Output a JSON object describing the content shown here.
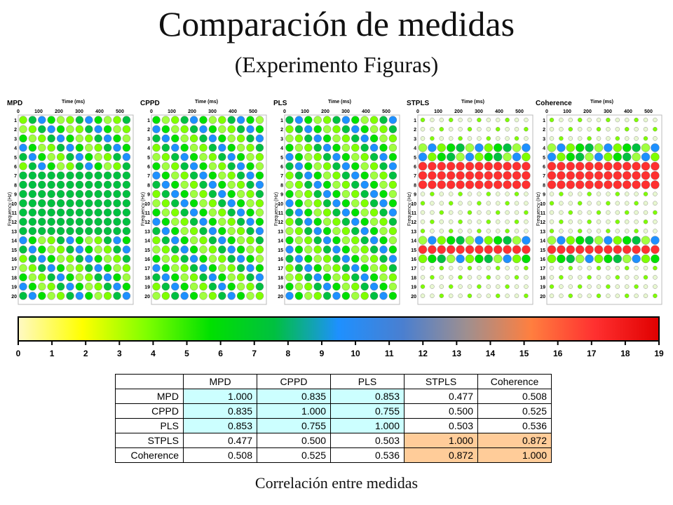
{
  "title": "Comparación de medidas",
  "subtitle": "(Experimento Figuras)",
  "panels": [
    {
      "name": "MPD",
      "time_label": "Time (ms)",
      "y_label": "Frequency (Hz)"
    },
    {
      "name": "CPPD",
      "time_label": "Time (ms)",
      "y_label": "Frequency (Hz)"
    },
    {
      "name": "PLS",
      "time_label": "Time (ms)",
      "y_label": "Frequency (Hz)"
    },
    {
      "name": "STPLS",
      "time_label": "Time (ms)",
      "y_label": "Frequency (Hz)"
    },
    {
      "name": "Coherence",
      "time_label": "Time (ms)",
      "y_label": "Frequency (Hz)"
    }
  ],
  "time_ticks": [
    "0",
    "100",
    "200",
    "300",
    "400",
    "500"
  ],
  "freq_ticks": [
    "1",
    "2",
    "3",
    "4",
    "5",
    "6",
    "7",
    "8",
    "9",
    "10",
    "11",
    "12",
    "13",
    "14",
    "15",
    "16",
    "17",
    "18",
    "19",
    "20"
  ],
  "colorbar": {
    "ticks": [
      "0",
      "1",
      "2",
      "3",
      "4",
      "5",
      "6",
      "7",
      "8",
      "9",
      "10",
      "11",
      "12",
      "13",
      "14",
      "15",
      "16",
      "17",
      "18",
      "19"
    ],
    "colors": [
      "#fff9c4",
      "#ffff00",
      "#7fff00",
      "#00e000",
      "#00c040",
      "#1e90ff",
      "#4a7fd0",
      "#9f8f8f",
      "#ff7f3f",
      "#ff3030",
      "#e00000"
    ]
  },
  "table": {
    "headers": [
      "",
      "MPD",
      "CPPD",
      "PLS",
      "STPLS",
      "Coherence"
    ],
    "rows": [
      {
        "label": "MPD",
        "values": [
          "1.000",
          "0.835",
          "0.853",
          "0.477",
          "0.508"
        ]
      },
      {
        "label": "CPPD",
        "values": [
          "0.835",
          "1.000",
          "0.755",
          "0.500",
          "0.525"
        ]
      },
      {
        "label": "PLS",
        "values": [
          "0.853",
          "0.755",
          "1.000",
          "0.503",
          "0.536"
        ]
      },
      {
        "label": "STPLS",
        "values": [
          "0.477",
          "0.500",
          "0.503",
          "1.000",
          "0.872"
        ]
      },
      {
        "label": "Coherence",
        "values": [
          "0.508",
          "0.525",
          "0.536",
          "0.872",
          "1.000"
        ]
      }
    ],
    "highlight_colors": {
      "group1": "#ccffff",
      "group2": "#ffcc99"
    }
  },
  "caption": "Correlación entre medidas"
}
